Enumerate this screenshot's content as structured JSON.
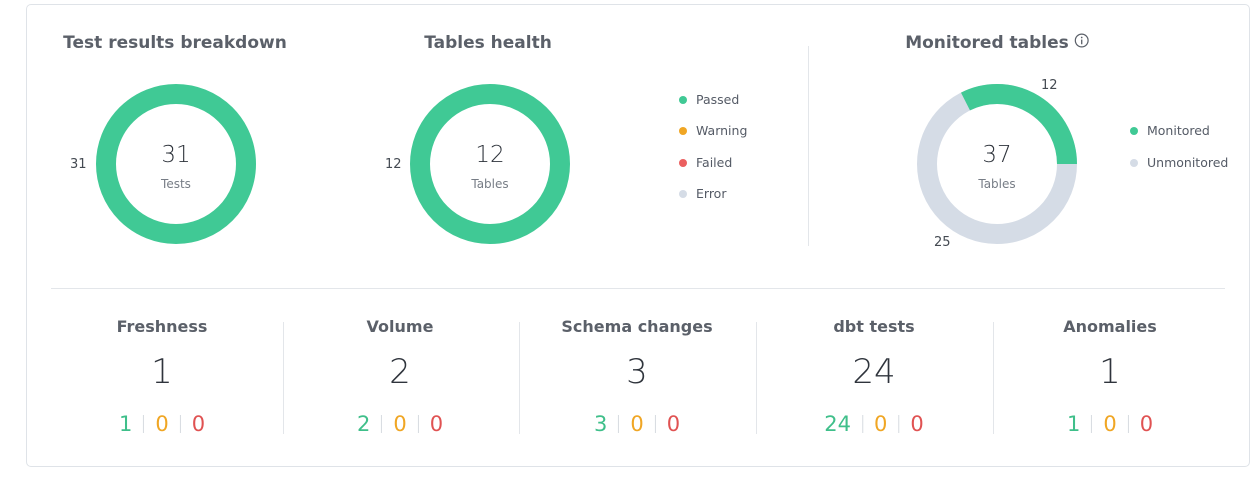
{
  "colors": {
    "passed": "#40c995",
    "warning": "#f0a624",
    "failed": "#eb5f5f",
    "error": "#d5dce6",
    "monitored": "#40c995",
    "unmonitored": "#d5dce6",
    "green_text": "#3fbf8a",
    "orange_text": "#f0a624",
    "red_text": "#e05252"
  },
  "test_results": {
    "title": "Test results breakdown",
    "center_value": "31",
    "center_label": "Tests",
    "side_label": "31"
  },
  "tables_health": {
    "title": "Tables health",
    "center_value": "12",
    "center_label": "Tables",
    "side_label": "12",
    "legend": [
      "Passed",
      "Warning",
      "Failed",
      "Error"
    ]
  },
  "monitored_tables": {
    "title": "Monitored tables",
    "info_icon": "info-icon",
    "center_value": "37",
    "center_label": "Tables",
    "monitored_count": 12,
    "unmonitored_count": 25,
    "monitored_label": "12",
    "unmonitored_label": "25",
    "legend": [
      "Monitored",
      "Unmonitored"
    ]
  },
  "stats": [
    {
      "title": "Freshness",
      "value": "1",
      "passed": "1",
      "warning": "0",
      "failed": "0"
    },
    {
      "title": "Volume",
      "value": "2",
      "passed": "2",
      "warning": "0",
      "failed": "0"
    },
    {
      "title": "Schema changes",
      "value": "3",
      "passed": "3",
      "warning": "0",
      "failed": "0"
    },
    {
      "title": "dbt tests",
      "value": "24",
      "passed": "24",
      "warning": "0",
      "failed": "0"
    },
    {
      "title": "Anomalies",
      "value": "1",
      "passed": "1",
      "warning": "0",
      "failed": "0"
    }
  ]
}
